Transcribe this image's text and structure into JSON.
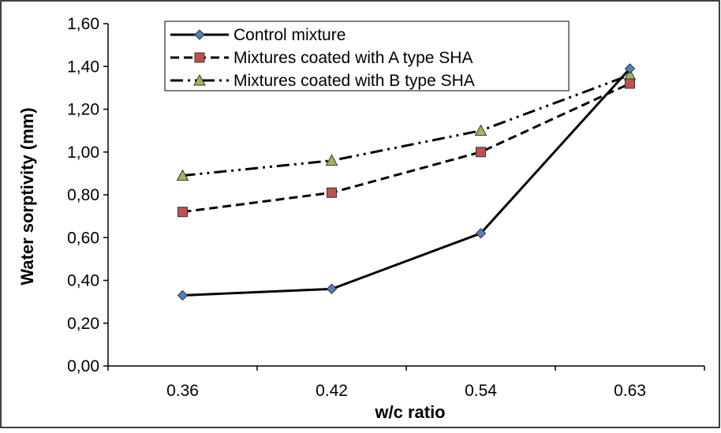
{
  "chart_data": {
    "type": "line",
    "categories": [
      "0.36",
      "0.42",
      "0.54",
      "0.63"
    ],
    "xlabel": "w/c ratio",
    "ylabel": "Water sorptivity (mm)",
    "ylim": [
      0,
      1.6
    ],
    "y_ticks": [
      "0,00",
      "0,20",
      "0,40",
      "0,60",
      "0,80",
      "1,00",
      "1,20",
      "1,40",
      "1,60"
    ],
    "grid": false,
    "legend_position": "top-left",
    "series": [
      {
        "name": "Control mixture",
        "values": [
          0.33,
          0.36,
          0.62,
          1.39
        ],
        "marker": "diamond",
        "line": "solid",
        "marker_color": "#4F81BD"
      },
      {
        "name": "Mixtures coated with A type SHA",
        "values": [
          0.72,
          0.81,
          1.0,
          1.32
        ],
        "marker": "square",
        "line": "dashed",
        "marker_color": "#C0504D"
      },
      {
        "name": "Mixtures coated with B type SHA",
        "values": [
          0.89,
          0.96,
          1.1,
          1.36
        ],
        "marker": "triangle",
        "line": "dash-dot-dot",
        "marker_color": "#9BBB59"
      }
    ]
  }
}
